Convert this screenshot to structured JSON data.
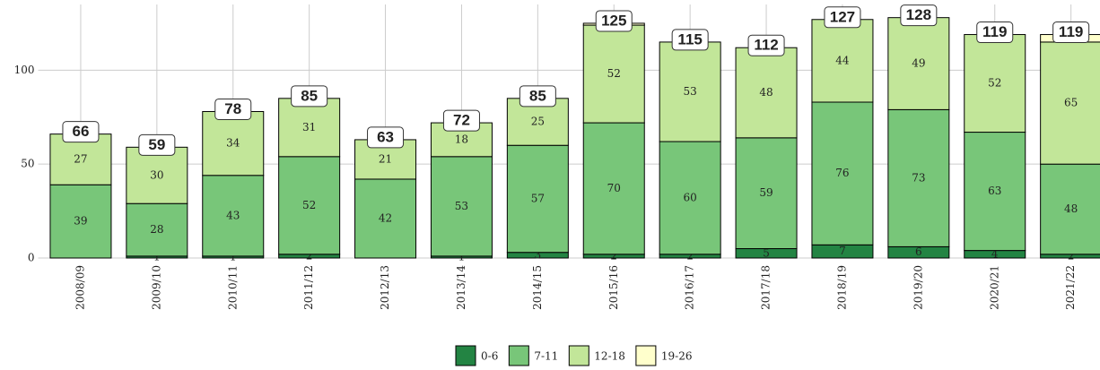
{
  "chart_data": {
    "type": "stacked_bar",
    "categories": [
      "2008/09",
      "2009/10",
      "2010/11",
      "2011/12",
      "2012/13",
      "2013/14",
      "2014/15",
      "2015/16",
      "2016/17",
      "2017/18",
      "2018/19",
      "2019/20",
      "2020/21",
      "2021/22"
    ],
    "series": [
      {
        "name": "0-6",
        "color": "#238443",
        "values": [
          null,
          1,
          1,
          2,
          null,
          1,
          3,
          2,
          2,
          5,
          7,
          6,
          4,
          2
        ]
      },
      {
        "name": "7-11",
        "color": "#78c679",
        "values": [
          39,
          28,
          43,
          52,
          42,
          53,
          57,
          70,
          60,
          59,
          76,
          73,
          63,
          48
        ]
      },
      {
        "name": "12-18",
        "color": "#c2e699",
        "values": [
          27,
          30,
          34,
          31,
          21,
          18,
          25,
          52,
          53,
          48,
          44,
          49,
          52,
          65
        ]
      },
      {
        "name": "19-26",
        "color": "#ffffcc",
        "values": [
          null,
          null,
          null,
          null,
          null,
          null,
          null,
          1,
          null,
          null,
          null,
          null,
          null,
          4
        ]
      }
    ],
    "totals": [
      66,
      59,
      78,
      85,
      63,
      72,
      85,
      125,
      115,
      112,
      127,
      128,
      119,
      119
    ],
    "ylim": [
      0,
      135
    ],
    "yticks": [
      0,
      50,
      100
    ],
    "grid": true,
    "legend": "bottom"
  }
}
